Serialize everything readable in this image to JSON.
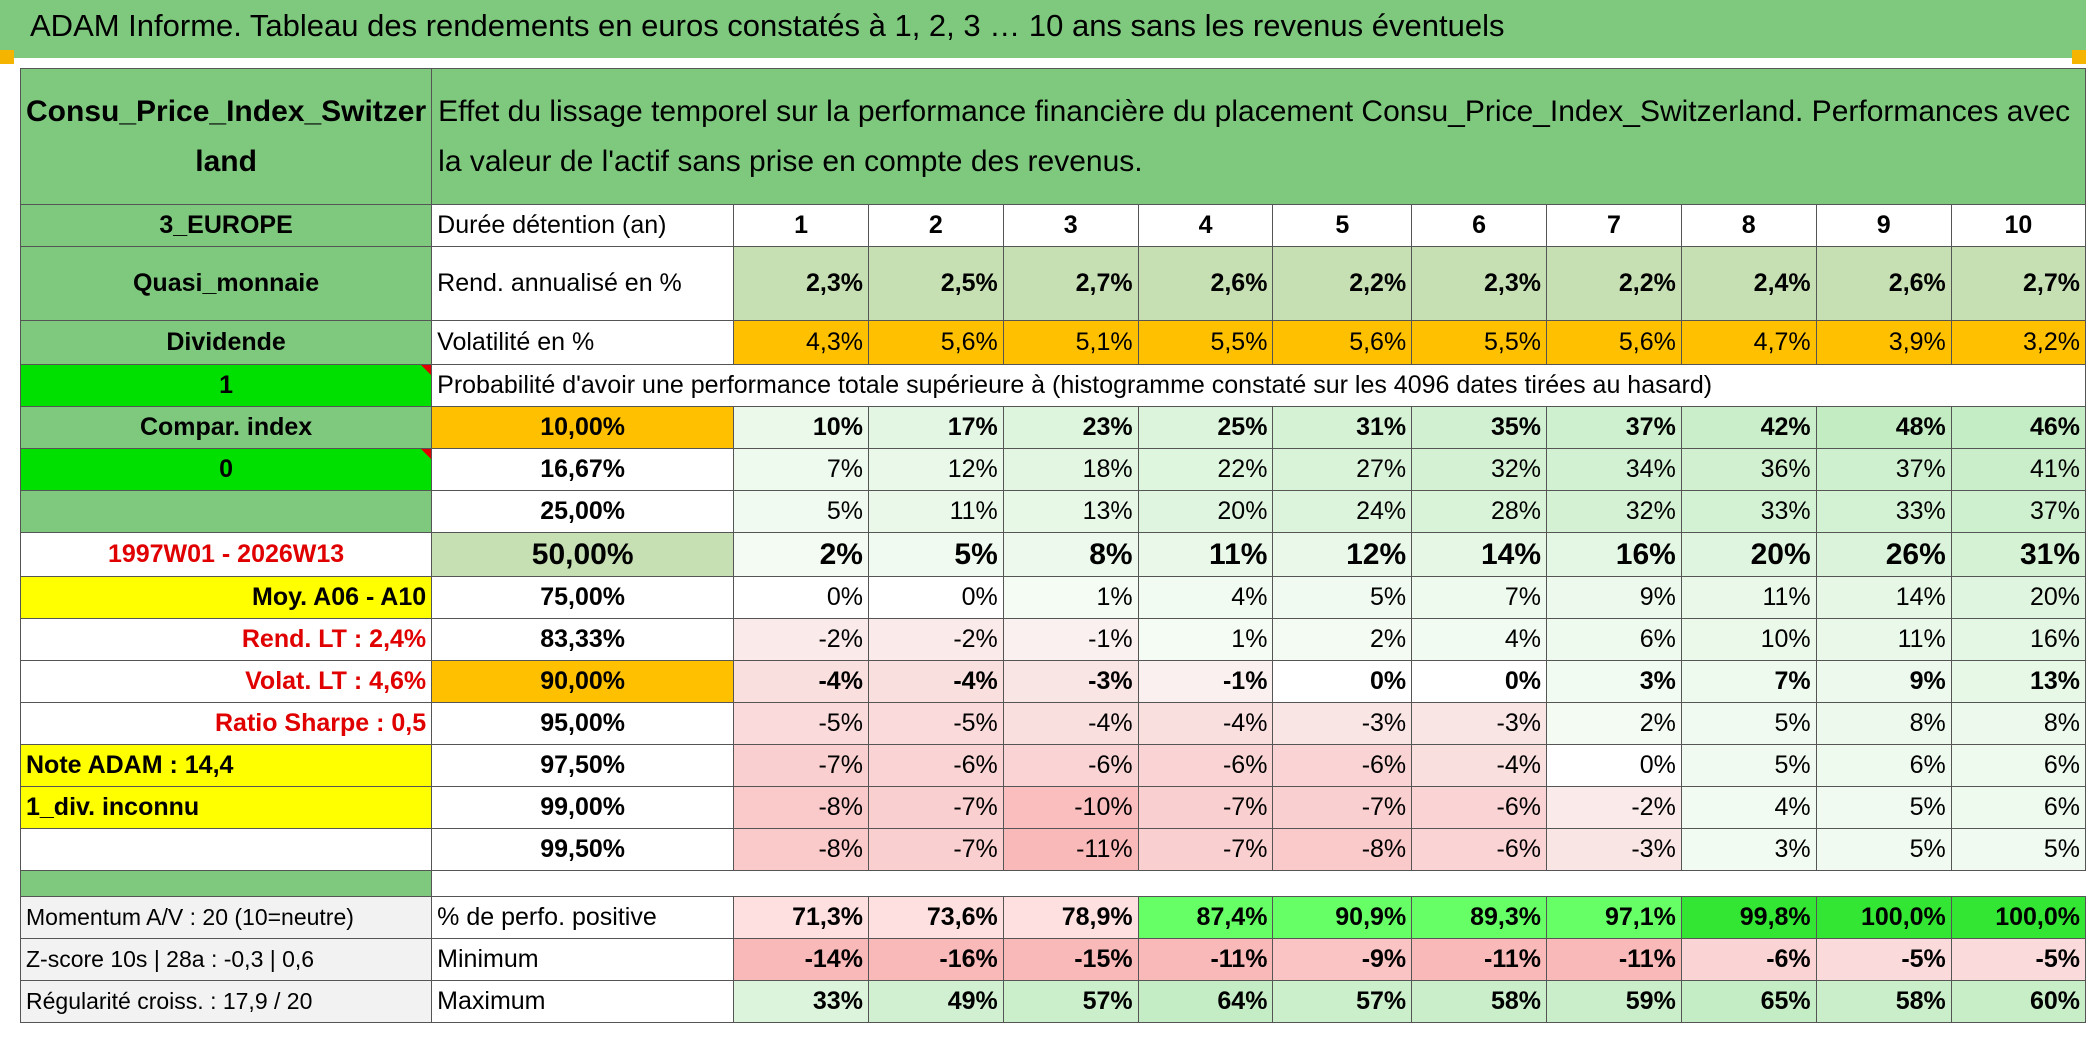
{
  "title": "ADAM Informe. Tableau des rendements en euros constatés à 1, 2, 3 … 10 ans sans les revenus éventuels",
  "asset": "Consu_Price_Index_Switzerland",
  "asset_line1": "Consu_Price_Index_Switzer",
  "asset_line2": "land",
  "description": "Effet du lissage temporel sur la performance financière du placement Consu_Price_Index_Switzerland. Performances avec la valeur de l'actif sans prise en compte des revenus.",
  "left": {
    "region": "3_EUROPE",
    "category": "Quasi_monnaie",
    "dividend": "Dividende",
    "flag1": "1",
    "compar": "Compar. index",
    "flag2": "0",
    "period": "1997W01 - 2026W13",
    "moy": "Moy. A06 - A10",
    "rend_lt": "Rend. LT :   2,4%",
    "volat_lt": "Volat. LT :   4,6%",
    "sharpe": "Ratio Sharpe :   0,5",
    "note": "Note ADAM : 14,4",
    "div": "1_div. inconnu",
    "momentum": "Momentum A/V : 20 (10=neutre)",
    "zscore": "Z-score 10s | 28a : -0,3 | 0,6",
    "regularite": "Régularité croiss. : 17,9 / 20"
  },
  "labels": {
    "duree": "Durée détention (an)",
    "rend": "Rend. annualisé en %",
    "vol": "Volatilité en %",
    "prob": "Probabilité d'avoir une performance totale supérieure à (histogramme constaté sur les 4096 dates tirées au hasard)",
    "pos": "% de perfo. positive",
    "min": "Minimum",
    "max": "Maximum"
  },
  "years": [
    "1",
    "2",
    "3",
    "4",
    "5",
    "6",
    "7",
    "8",
    "9",
    "10"
  ],
  "rend": [
    "2,3%",
    "2,5%",
    "2,7%",
    "2,6%",
    "2,2%",
    "2,3%",
    "2,2%",
    "2,4%",
    "2,6%",
    "2,7%"
  ],
  "vol": [
    "4,3%",
    "5,6%",
    "5,1%",
    "5,5%",
    "5,6%",
    "5,5%",
    "5,6%",
    "4,7%",
    "3,9%",
    "3,2%"
  ],
  "percentiles": [
    {
      "p": "10,00%",
      "v": [
        "10%",
        "17%",
        "23%",
        "25%",
        "31%",
        "35%",
        "37%",
        "42%",
        "48%",
        "46%"
      ]
    },
    {
      "p": "16,67%",
      "v": [
        "7%",
        "12%",
        "18%",
        "22%",
        "27%",
        "32%",
        "34%",
        "36%",
        "37%",
        "41%"
      ]
    },
    {
      "p": "25,00%",
      "v": [
        "5%",
        "11%",
        "13%",
        "20%",
        "24%",
        "28%",
        "32%",
        "33%",
        "33%",
        "37%"
      ]
    },
    {
      "p": "50,00%",
      "v": [
        "2%",
        "5%",
        "8%",
        "11%",
        "12%",
        "14%",
        "16%",
        "20%",
        "26%",
        "31%"
      ]
    },
    {
      "p": "75,00%",
      "v": [
        "0%",
        "0%",
        "1%",
        "4%",
        "5%",
        "7%",
        "9%",
        "11%",
        "14%",
        "20%"
      ]
    },
    {
      "p": "83,33%",
      "v": [
        "-2%",
        "-2%",
        "-1%",
        "1%",
        "2%",
        "4%",
        "6%",
        "10%",
        "11%",
        "16%"
      ]
    },
    {
      "p": "90,00%",
      "v": [
        "-4%",
        "-4%",
        "-3%",
        "-1%",
        "0%",
        "0%",
        "3%",
        "7%",
        "9%",
        "13%"
      ]
    },
    {
      "p": "95,00%",
      "v": [
        "-5%",
        "-5%",
        "-4%",
        "-4%",
        "-3%",
        "-3%",
        "2%",
        "5%",
        "8%",
        "8%"
      ]
    },
    {
      "p": "97,50%",
      "v": [
        "-7%",
        "-6%",
        "-6%",
        "-6%",
        "-6%",
        "-4%",
        "0%",
        "5%",
        "6%",
        "6%"
      ]
    },
    {
      "p": "99,00%",
      "v": [
        "-8%",
        "-7%",
        "-10%",
        "-7%",
        "-7%",
        "-6%",
        "-2%",
        "4%",
        "5%",
        "6%"
      ]
    },
    {
      "p": "99,50%",
      "v": [
        "-8%",
        "-7%",
        "-11%",
        "-7%",
        "-8%",
        "-6%",
        "-3%",
        "3%",
        "5%",
        "5%"
      ]
    }
  ],
  "pos": [
    "71,3%",
    "73,6%",
    "78,9%",
    "87,4%",
    "90,9%",
    "89,3%",
    "97,1%",
    "99,8%",
    "100,0%",
    "100,0%"
  ],
  "min": [
    "-14%",
    "-16%",
    "-15%",
    "-11%",
    "-9%",
    "-11%",
    "-11%",
    "-6%",
    "-5%",
    "-5%"
  ],
  "max": [
    "33%",
    "49%",
    "57%",
    "64%",
    "57%",
    "58%",
    "59%",
    "65%",
    "58%",
    "60%"
  ],
  "colors": {
    "header_green": "#7fc97f",
    "light_green": "#c6e0b4",
    "orange": "#ffc000",
    "bright_green": "#00e000",
    "yellow": "#ffff00",
    "red_text": "#e00000"
  }
}
